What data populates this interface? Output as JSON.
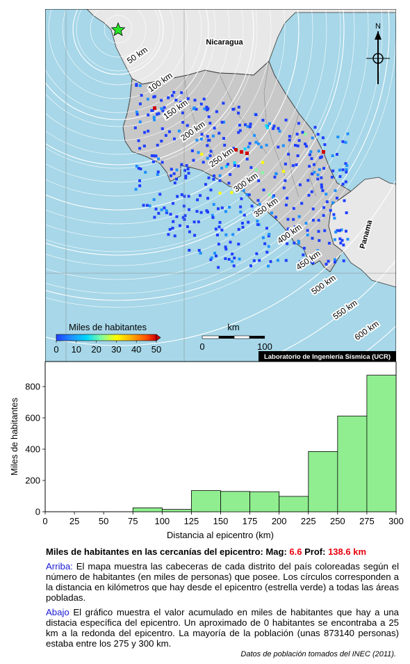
{
  "map": {
    "country_labels": [
      {
        "name": "Nicaragua"
      },
      {
        "name": "Panama"
      }
    ],
    "north_label": "N",
    "distance_rings": [
      "50 km",
      "100 km",
      "150 km",
      "200 km",
      "250 km",
      "300 km",
      "350 km",
      "400 km",
      "450 km",
      "500 km",
      "550 km",
      "600 km"
    ],
    "legend": {
      "title": "Miles de habitantes",
      "ticks": [
        "0",
        "10",
        "20",
        "30",
        "40",
        "50"
      ],
      "colors": [
        "#1f3fff",
        "#1e90ff",
        "#00d7ff",
        "#7fffa0",
        "#ffff00",
        "#ffb000",
        "#ff5000",
        "#d00000"
      ]
    },
    "scale": {
      "unit": "km",
      "ticks": [
        "0",
        "100"
      ]
    },
    "credit": "Laboratorio de Ingeniería Sísmica (UCR)",
    "colors": {
      "ocean": "#a7d7e8",
      "land_cr": "#c8c8c8",
      "land_other": "#e8e8e8",
      "epicenter": "#29e529"
    }
  },
  "chart_data": {
    "type": "bar",
    "x_bin_edges": [
      0,
      25,
      50,
      75,
      100,
      125,
      150,
      175,
      200,
      225,
      250,
      275,
      300
    ],
    "values": [
      0,
      0,
      0,
      25,
      15,
      135,
      130,
      128,
      98,
      385,
      612,
      873
    ],
    "xlabel": "Distancia al epicentro (km)",
    "ylabel": "Miles de habitantes",
    "xticks": [
      "0",
      "25",
      "50",
      "75",
      "100",
      "125",
      "150",
      "175",
      "200",
      "225",
      "250",
      "275",
      "300"
    ],
    "yticks": [
      "0",
      "200",
      "400",
      "600",
      "800"
    ],
    "xlim": [
      0,
      300
    ],
    "ylim": [
      0,
      960
    ],
    "bar_color": "#90ee90",
    "grid": false
  },
  "caption": {
    "title_prefix": "Miles de habitantes en las cercanías del epicentro: Mag:",
    "mag": "6.6",
    "prof_label": "Prof:",
    "prof": "138.6 km",
    "p1_lead": "Arriba:",
    "p1_text": " El mapa muestra las cabeceras de cada distrito del país coloreadas según el número de habitantes (en miles de personas) que posee.  Los círculos corresponden a la distancia en kilómetros que hay desde el epicentro (estrella verde) a todas las áreas pobladas.",
    "p2_lead": "Abajo",
    "p2_text": " El gráfico muestra el valor acumulado en miles de habitantes que hay a una distacia específica del epicentro.  Un aproximado de 0 habitantes se encontraba a 25 km a la redonda del epicentro.  La mayoría de la población (unas 873140 personas) estaba entre los 275 y 300 km.",
    "source": "Datos de población tomados del INEC (2011)."
  }
}
